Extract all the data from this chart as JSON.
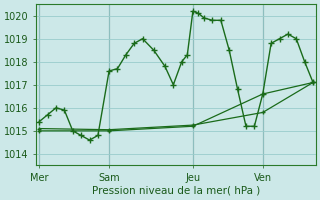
{
  "xlabel": "Pression niveau de la mer( hPa )",
  "bg_color": "#cce8e8",
  "grid_color": "#99cccc",
  "line_color": "#1a6b1a",
  "ylim": [
    1013.5,
    1020.5
  ],
  "yticks": [
    1014,
    1015,
    1016,
    1017,
    1018,
    1019,
    1020
  ],
  "xlim": [
    0,
    200
  ],
  "day_labels": [
    "Mer",
    "Sam",
    "Jeu",
    "Ven"
  ],
  "day_positions": [
    2,
    52,
    112,
    162
  ],
  "series1_x": [
    2,
    8,
    14,
    20,
    26,
    32,
    38,
    44,
    52,
    58,
    64,
    70,
    76,
    84,
    92,
    98,
    104,
    108,
    112,
    116,
    120,
    126,
    132,
    138,
    144,
    150,
    156,
    162,
    168,
    174,
    180,
    186,
    192,
    198
  ],
  "series1_y": [
    1015.4,
    1015.7,
    1016.0,
    1015.9,
    1015.0,
    1014.8,
    1014.6,
    1014.8,
    1017.6,
    1017.7,
    1018.3,
    1018.8,
    1019.0,
    1018.5,
    1017.8,
    1017.0,
    1018.0,
    1018.3,
    1020.2,
    1020.1,
    1019.9,
    1019.8,
    1019.8,
    1018.5,
    1016.8,
    1015.2,
    1015.2,
    1016.6,
    1018.8,
    1019.0,
    1019.2,
    1019.0,
    1018.0,
    1017.1
  ],
  "series2_x": [
    2,
    52,
    112,
    162,
    198
  ],
  "series2_y": [
    1015.0,
    1015.0,
    1015.2,
    1016.6,
    1017.1
  ],
  "series3_x": [
    2,
    52,
    112,
    162,
    198
  ],
  "series3_y": [
    1015.1,
    1015.05,
    1015.25,
    1015.8,
    1017.1
  ]
}
